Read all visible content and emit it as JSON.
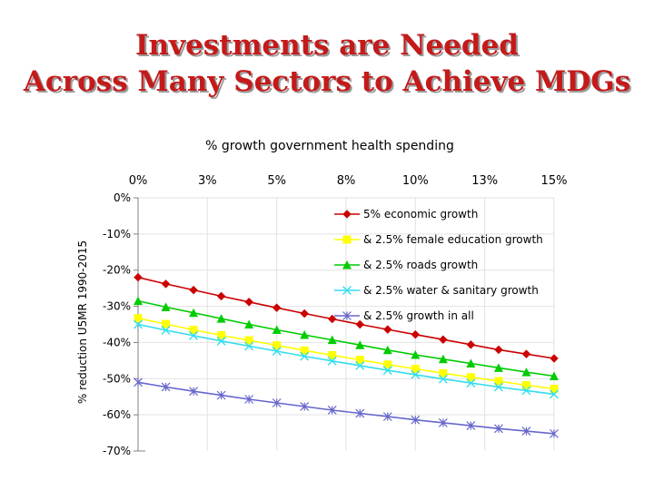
{
  "slide": {
    "title_line_1": "Investments are Needed",
    "title_line_2": "Across Many Sectors to Achieve MDGs"
  },
  "chart_data": {
    "type": "line",
    "title": "% growth government health spending",
    "xlabel": "% growth government health spending",
    "ylabel": "% reduction U5MR 1990-2015",
    "x_tick_labels": [
      "0%",
      "3%",
      "5%",
      "8%",
      "10%",
      "13%",
      "15%"
    ],
    "x_ticks": [
      0,
      2.5,
      5,
      7.5,
      10,
      12.5,
      15
    ],
    "xlim": [
      0,
      15
    ],
    "y_tick_labels": [
      "0%",
      "-10%",
      "-20%",
      "-30%",
      "-40%",
      "-50%",
      "-60%",
      "-70%"
    ],
    "y_ticks": [
      0,
      -10,
      -20,
      -30,
      -40,
      -50,
      -60,
      -70
    ],
    "ylim": [
      -70,
      0
    ],
    "x": [
      0,
      1,
      2,
      3,
      4,
      5,
      6,
      7,
      8,
      9,
      10,
      11,
      12,
      13,
      14,
      15
    ],
    "legend_position": "top-right",
    "series": [
      {
        "name": "5% economic growth",
        "color": "#cc0000",
        "marker": "diamond",
        "values": [
          -22,
          -23.8,
          -25.5,
          -27.2,
          -28.8,
          -30.4,
          -32,
          -33.5,
          -35,
          -36.4,
          -37.8,
          -39.2,
          -40.6,
          -42,
          -43.2,
          -44.4
        ]
      },
      {
        "name": "& 2.5% female education growth",
        "color": "#ffff00",
        "marker": "square",
        "values": [
          -33.3,
          -34.9,
          -36.5,
          -38,
          -39.4,
          -40.8,
          -42.2,
          -43.5,
          -44.8,
          -46.1,
          -47.3,
          -48.5,
          -49.6,
          -50.7,
          -51.8,
          -52.8
        ]
      },
      {
        "name": "& 2.5% roads growth",
        "color": "#00cc00",
        "marker": "triangle",
        "values": [
          -28.5,
          -30.2,
          -31.8,
          -33.4,
          -35,
          -36.5,
          -37.9,
          -39.3,
          -40.7,
          -42.1,
          -43.4,
          -44.6,
          -45.8,
          -47,
          -48.2,
          -49.3
        ]
      },
      {
        "name": "& 2.5% water & sanitary growth",
        "color": "#33ddee",
        "marker": "x",
        "values": [
          -35,
          -36.6,
          -38.1,
          -39.6,
          -41,
          -42.4,
          -43.8,
          -45.1,
          -46.4,
          -47.7,
          -48.9,
          -50.1,
          -51.2,
          -52.3,
          -53.3,
          -54.3
        ]
      },
      {
        "name": "& 2.5% growth in all",
        "color": "#6666cc",
        "marker": "star",
        "values": [
          -51,
          -52.3,
          -53.5,
          -54.6,
          -55.7,
          -56.7,
          -57.7,
          -58.7,
          -59.6,
          -60.5,
          -61.4,
          -62.2,
          -63,
          -63.8,
          -64.5,
          -65.2
        ]
      }
    ]
  }
}
